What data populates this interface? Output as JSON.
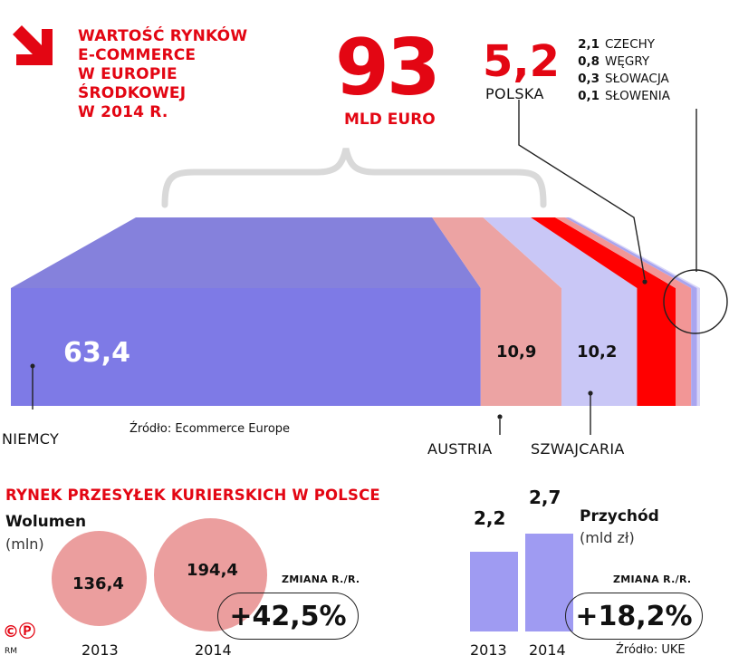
{
  "title": {
    "lines": [
      "WARTOŚĆ RYNKÓW",
      "E-COMMERCE",
      "W EUROPIE",
      "ŚRODKOWEJ",
      "W 2014 R."
    ]
  },
  "total": {
    "value": "93",
    "unit": "MLD EURO"
  },
  "poland": {
    "value": "5,2",
    "label": "POLSKA"
  },
  "small_countries": [
    {
      "value": "2,1",
      "label": "CZECHY"
    },
    {
      "value": "0,8",
      "label": "WĘGRY"
    },
    {
      "value": "0,3",
      "label": "SŁOWACJA"
    },
    {
      "value": "0,1",
      "label": "SŁOWENIA"
    }
  ],
  "bar_labels": {
    "niemcy": {
      "value": "63,4",
      "label": "NIEMCY"
    },
    "austria": {
      "value": "10,9",
      "label": "AUSTRIA"
    },
    "szwajcaria": {
      "value": "10,2",
      "label": "SZWAJCARIA"
    }
  },
  "source_ecommerce": "Źródło: Ecommerce Europe",
  "colors": {
    "niemcy": "#7e7ae6",
    "niemcy_top": "#8581dc",
    "austria": "#eca3a3",
    "szwajcaria": "#c9c7f6",
    "polska": "#ff0000",
    "czechy": "#f29696",
    "wegry": "#a9a5ef",
    "slowacja": "#d6d4f8",
    "slowenia": "#cfcdf5"
  },
  "chart_data": [
    {
      "type": "bar",
      "title": "WARTOŚĆ RYNKÓW E-COMMERCE W EUROPIE ŚRODKOWEJ W 2014 R.",
      "subtitle": "93 MLD EURO",
      "orientation": "stacked-horizontal",
      "unit": "mld euro",
      "categories": [
        "NIEMCY",
        "AUSTRIA",
        "SZWAJCARIA",
        "POLSKA",
        "CZECHY",
        "WĘGRY",
        "SŁOWACJA",
        "SŁOWENIA"
      ],
      "values": [
        63.4,
        10.9,
        10.2,
        5.2,
        2.1,
        0.8,
        0.3,
        0.1
      ],
      "total": 93,
      "source": "Ecommerce Europe"
    },
    {
      "type": "bubble",
      "title": "RYNEK PRZESYŁEK KURIERSKICH W POLSCE",
      "series_name": "Wolumen",
      "unit": "mln",
      "categories": [
        "2013",
        "2014"
      ],
      "values": [
        136.4,
        194.4
      ],
      "change": "+42,5%"
    },
    {
      "type": "bar",
      "title": "RYNEK PRZESYŁEK KURIERSKICH W POLSCE",
      "series_name": "Przychód",
      "unit": "mld zł",
      "categories": [
        "2013",
        "2014"
      ],
      "values": [
        2.2,
        2.7
      ],
      "change": "+18,2%",
      "source": "UKE"
    }
  ],
  "courier": {
    "heading": "RYNEK PRZESYŁEK KURIERSKICH W POLSCE",
    "volume": {
      "label": "Wolumen",
      "unit": "(mln)",
      "values": [
        "136,4",
        "194,4"
      ],
      "years": [
        "2013",
        "2014"
      ],
      "change_label": "ZMIANA R./R.",
      "change": "+42,5%"
    },
    "revenue": {
      "label": "Przychód",
      "unit": "(mld zł)",
      "values": [
        "2,2",
        "2,7"
      ],
      "years": [
        "2013",
        "2014"
      ],
      "change_label": "ZMIANA R./R.",
      "change": "+18,2%",
      "source": "Źródło: UKE"
    }
  },
  "credits": {
    "mark": "©Ⓟ",
    "initials": "RM"
  }
}
